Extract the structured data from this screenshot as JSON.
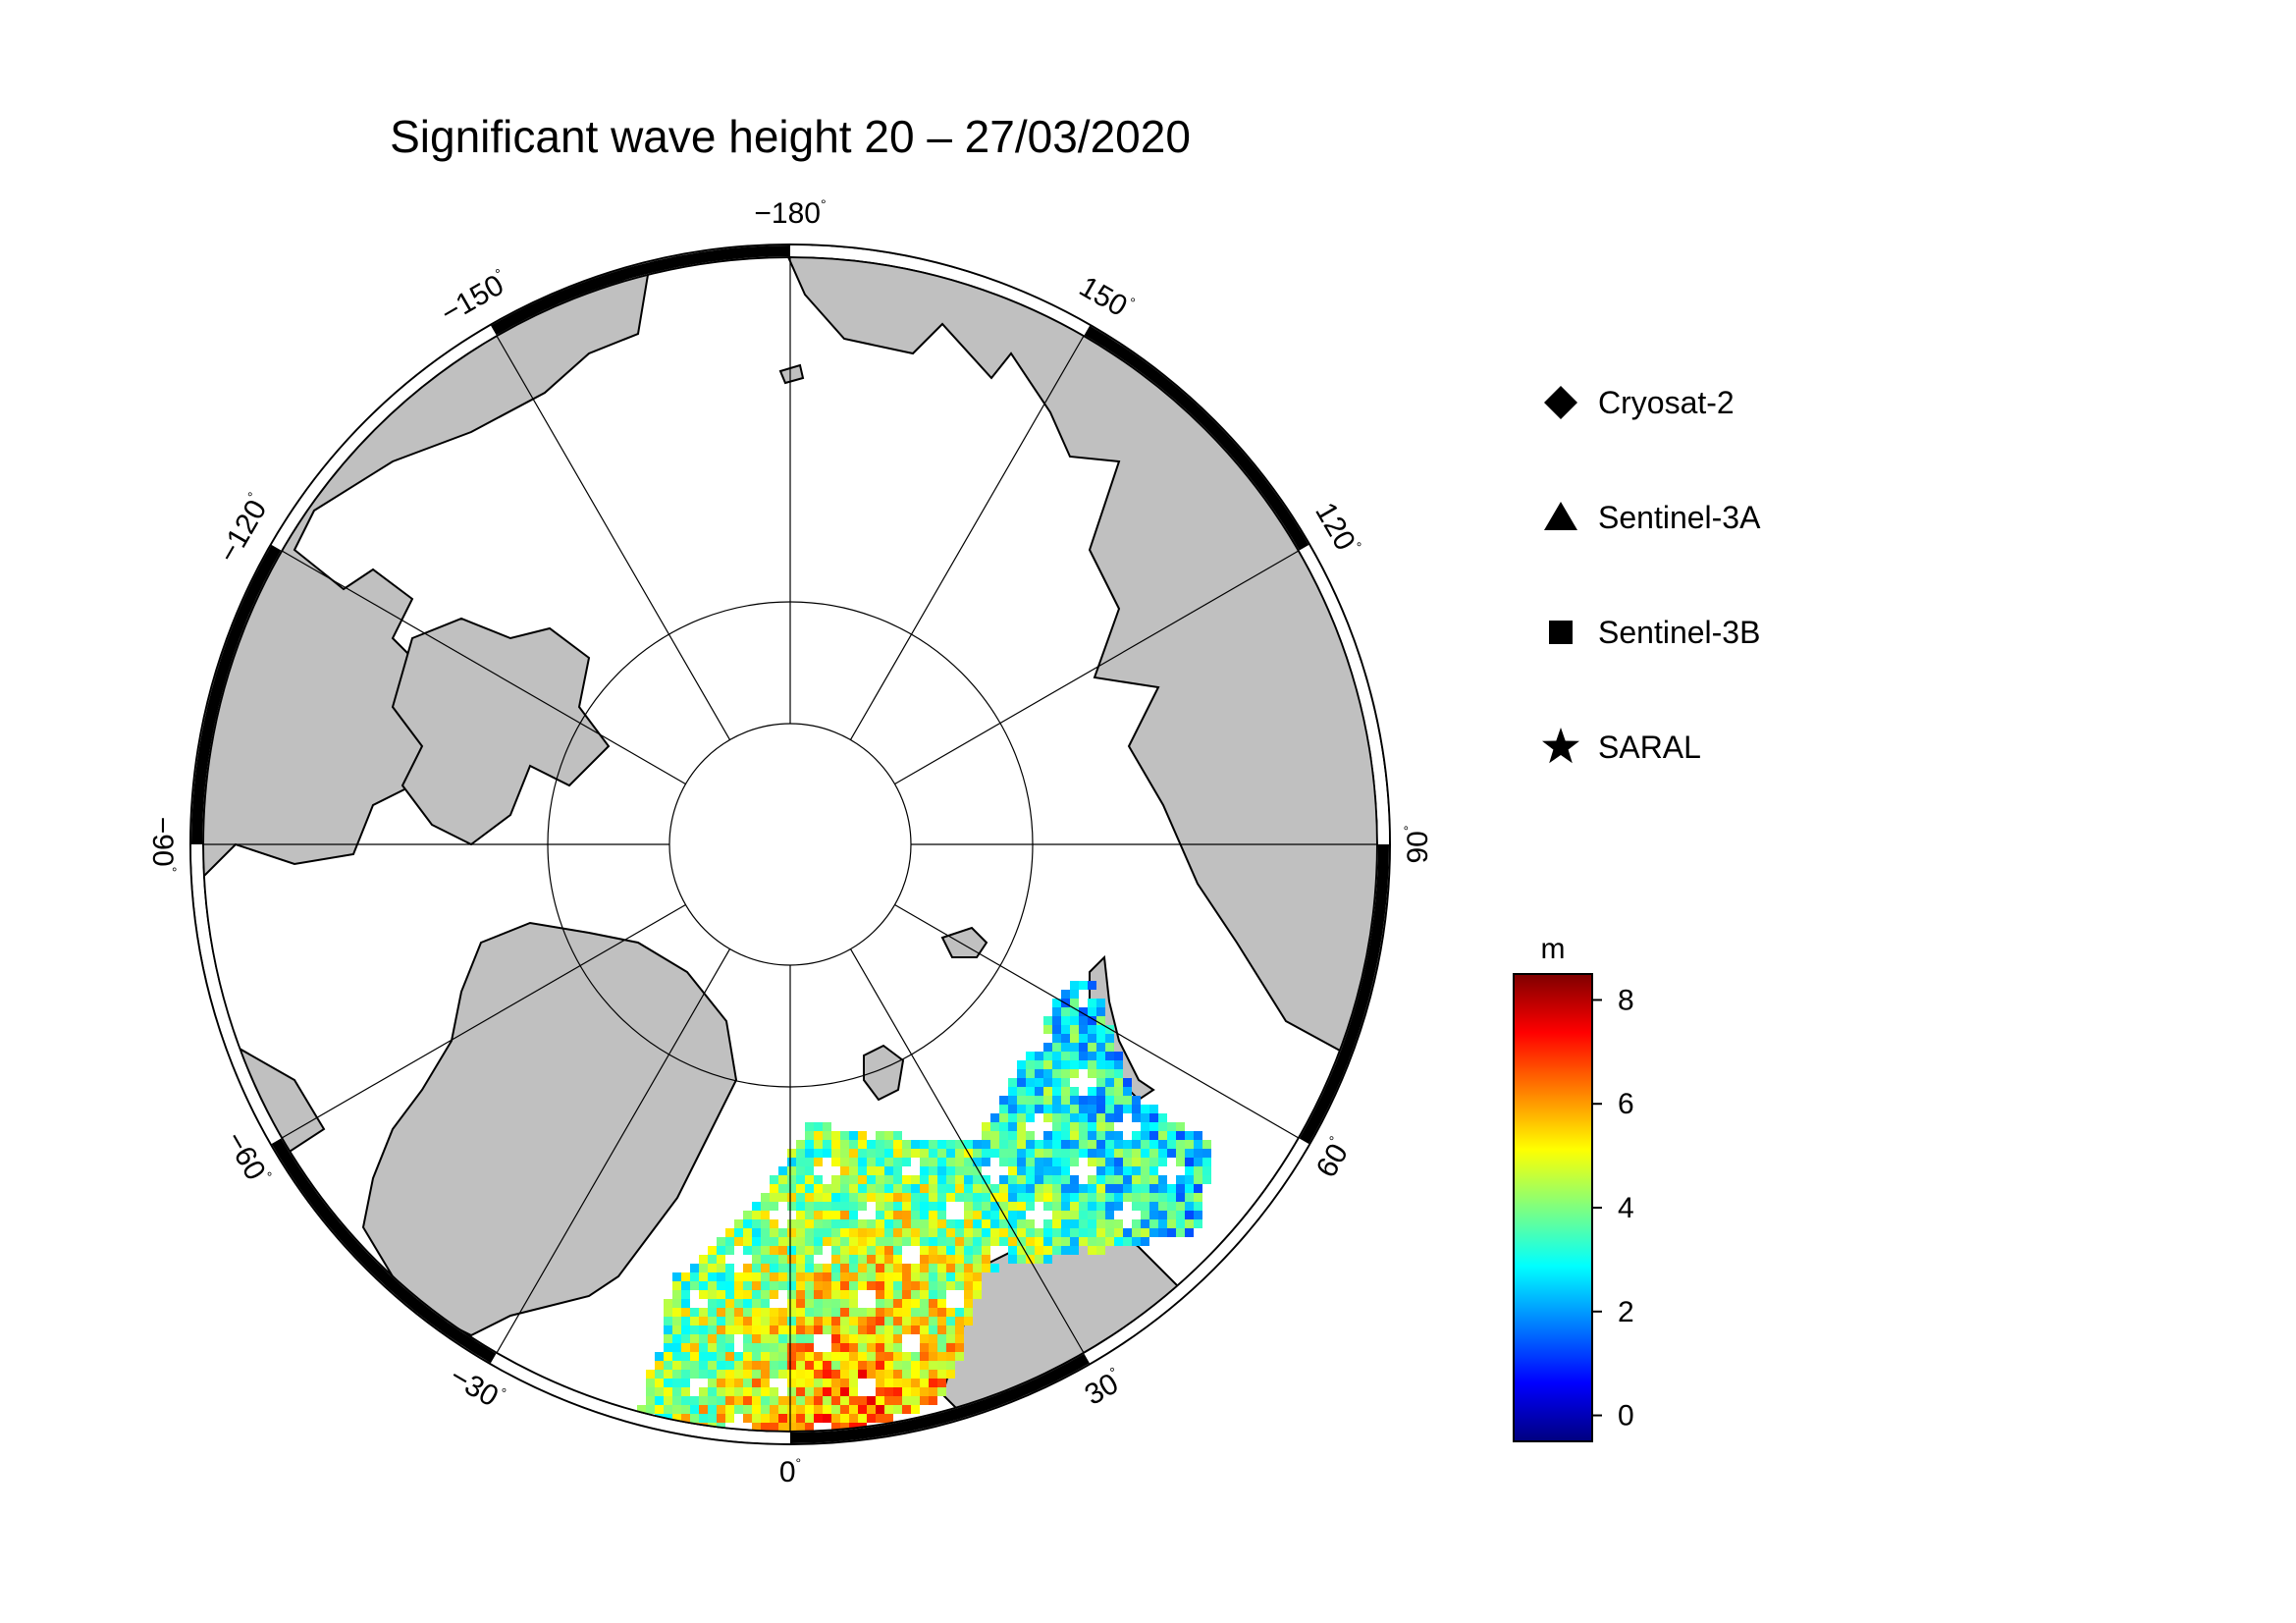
{
  "title": "Significant wave height 20 – 27/03/2020",
  "map": {
    "projection": "north polar stereographic",
    "graticule_latitudes": [
      80,
      70
    ],
    "meridian_labels": [
      {
        "lon": 180,
        "text": "−180"
      },
      {
        "lon": 150,
        "text": "150"
      },
      {
        "lon": 120,
        "text": "120"
      },
      {
        "lon": 90,
        "text": "90"
      },
      {
        "lon": 60,
        "text": "60"
      },
      {
        "lon": 30,
        "text": "30"
      },
      {
        "lon": 0,
        "text": "0"
      },
      {
        "lon": -30,
        "text": "−30"
      },
      {
        "lon": -60,
        "text": "−60"
      },
      {
        "lon": -90,
        "text": "−90"
      },
      {
        "lon": -120,
        "text": "−120"
      },
      {
        "lon": -150,
        "text": "−150"
      }
    ],
    "colors": {
      "land": "#c0c0c0",
      "coastline": "#000000",
      "ocean_ice": "#ffffff",
      "frame_black": "#000000",
      "frame_white": "#ffffff"
    }
  },
  "legend": {
    "items": [
      {
        "symbol": "diamond",
        "label": "Cryosat-2"
      },
      {
        "symbol": "triangle",
        "label": "Sentinel-3A"
      },
      {
        "symbol": "square",
        "label": "Sentinel-3B"
      },
      {
        "symbol": "star",
        "label": "SARAL"
      }
    ]
  },
  "colorbar": {
    "unit": "m",
    "min": -0.5,
    "max": 8.5,
    "ticks": [
      {
        "value": 8,
        "label": "8"
      },
      {
        "value": 6,
        "label": "6"
      },
      {
        "value": 4,
        "label": "4"
      },
      {
        "value": 2,
        "label": "2"
      },
      {
        "value": 0,
        "label": "0"
      }
    ],
    "colormap": "jet",
    "stops": [
      "#00007f",
      "#0000ff",
      "#007fff",
      "#00ffff",
      "#7fff7f",
      "#ffff00",
      "#ff7f00",
      "#ff0000",
      "#7f0000"
    ]
  }
}
